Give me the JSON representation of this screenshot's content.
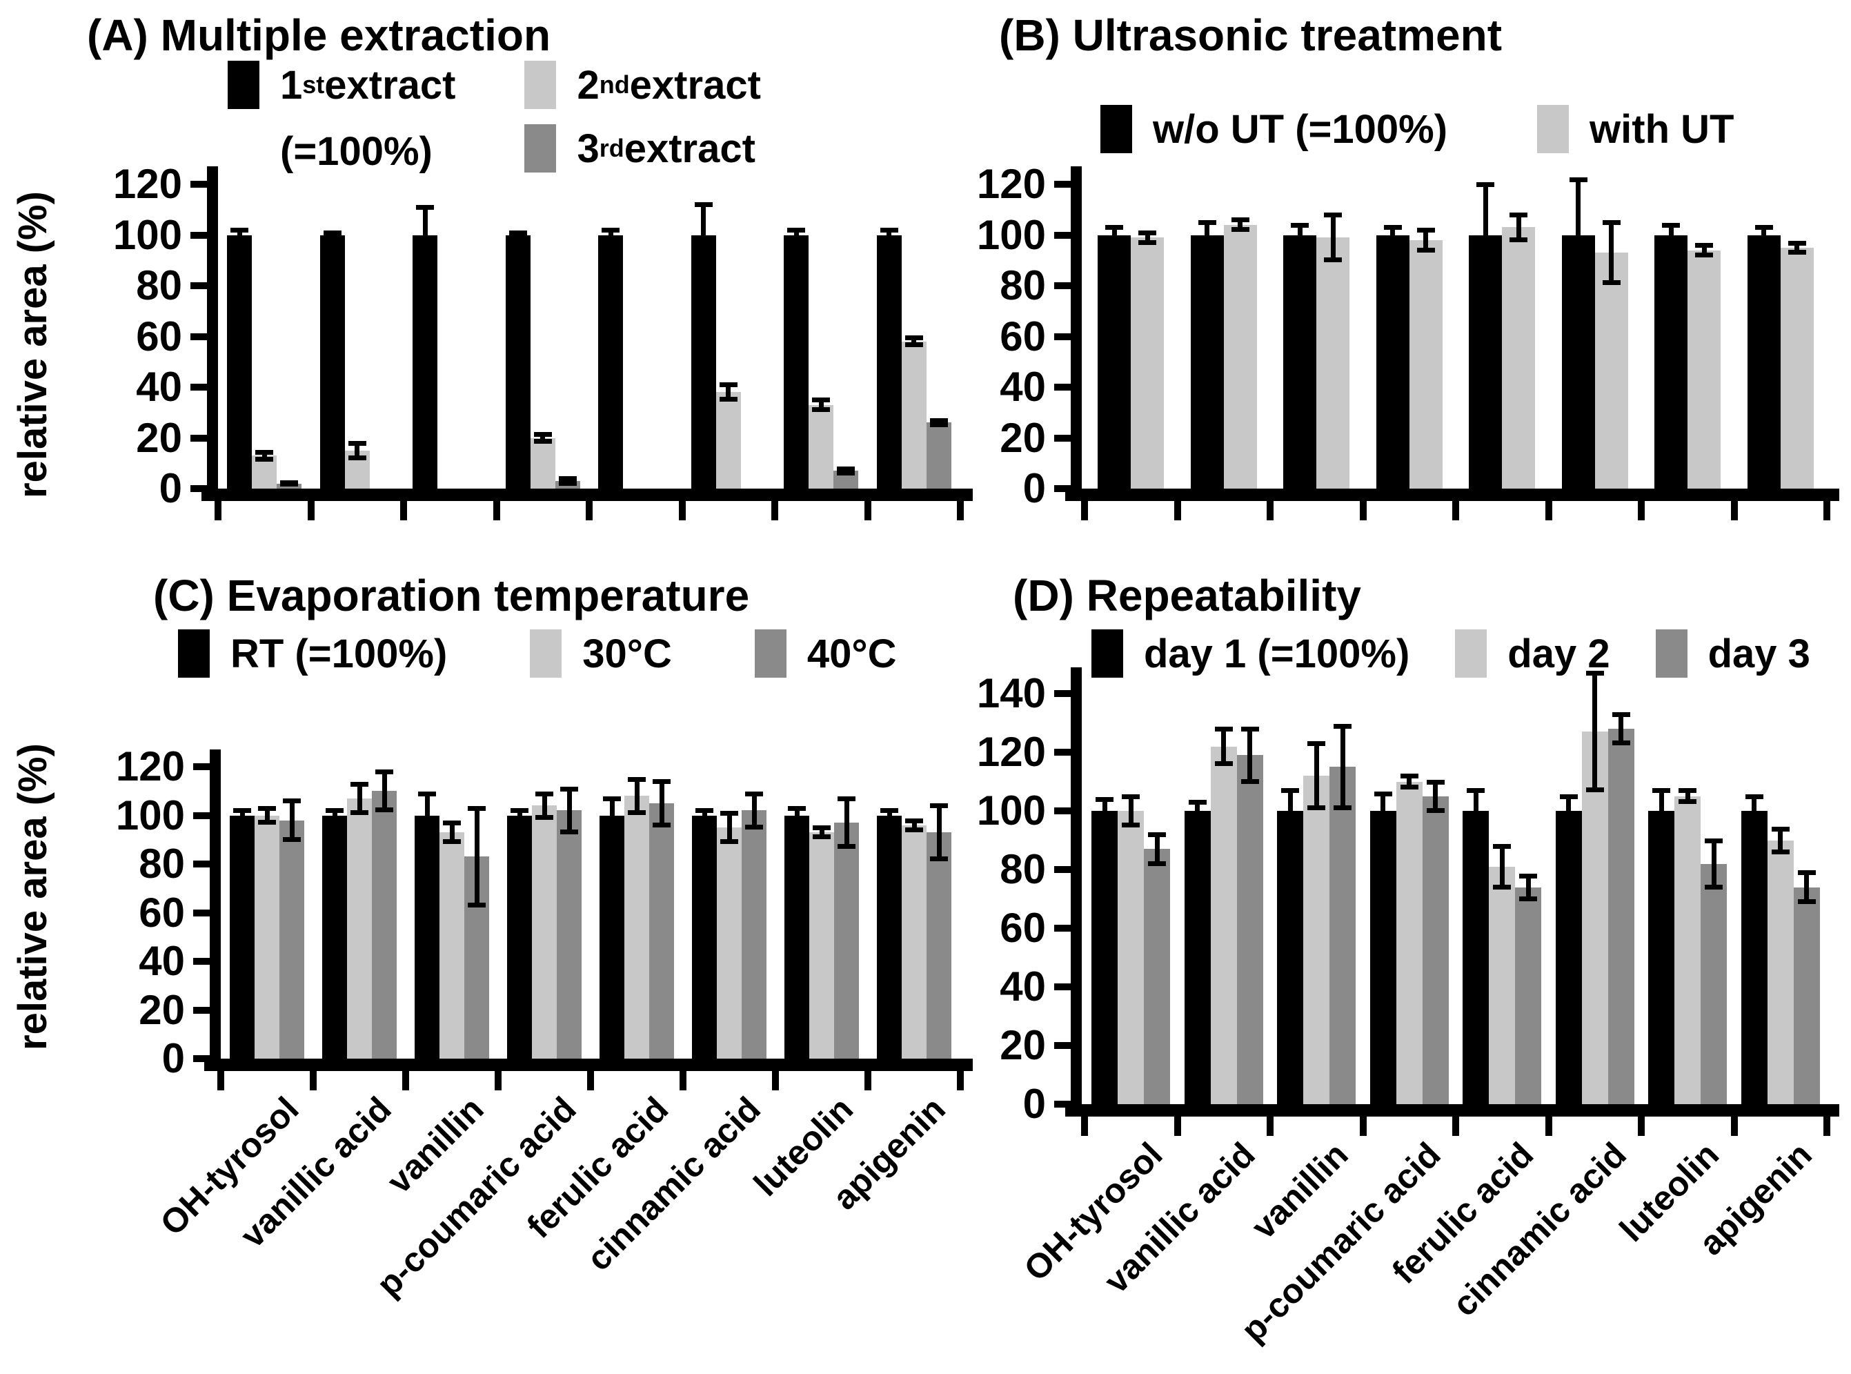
{
  "chart_data": [
    {
      "type": "bar",
      "panel": "A",
      "title": "(A) Multiple extraction",
      "ylabel": "relative area (%)",
      "ylim": [
        0,
        130
      ],
      "yticks": [
        0,
        20,
        40,
        60,
        80,
        100,
        120
      ],
      "grid": false,
      "legend_position": "top",
      "categories": [
        "OH-tyrosol",
        "vanillic acid",
        "vanillin",
        "p-coumaric acid",
        "ferulic acid",
        "cinnamic acid",
        "luteolin",
        "apigenin"
      ],
      "series": [
        {
          "name": "1st extract (=100%)",
          "legend_lines": [
            "1st extract",
            "(=100%)"
          ],
          "color": "#000000",
          "values": [
            100,
            100,
            100,
            100,
            100,
            100,
            100,
            100
          ],
          "errors": [
            2,
            1,
            11,
            1,
            2,
            12,
            2,
            2
          ]
        },
        {
          "name": "2nd extract",
          "legend_lines": [
            "2nd extract"
          ],
          "color": "#c8c8c8",
          "values": [
            13,
            15,
            0,
            20,
            0,
            38,
            33,
            58
          ],
          "errors": [
            1.5,
            3,
            0,
            1.5,
            0,
            3,
            2,
            1.5
          ]
        },
        {
          "name": "3rd extract",
          "legend_lines": [
            "3rd extract"
          ],
          "color": "#8a8a8a",
          "values": [
            2,
            0,
            0,
            3,
            0,
            0,
            7,
            26
          ],
          "errors": [
            0.5,
            0,
            0,
            1,
            0,
            0,
            1,
            1
          ]
        }
      ]
    },
    {
      "type": "bar",
      "panel": "B",
      "title": "(B) Ultrasonic treatment",
      "ylabel": "",
      "ylim": [
        0,
        130
      ],
      "yticks": [
        0,
        20,
        40,
        60,
        80,
        100,
        120
      ],
      "grid": false,
      "legend_position": "top",
      "categories": [
        "OH-tyrosol",
        "vanillic acid",
        "vanillin",
        "p-coumaric acid",
        "ferulic acid",
        "cinnamic acid",
        "luteolin",
        "apigenin"
      ],
      "series": [
        {
          "name": "w/o UT (=100%)",
          "legend_lines": [
            "w/o UT (=100%)"
          ],
          "color": "#000000",
          "values": [
            100,
            100,
            100,
            100,
            100,
            100,
            100,
            100
          ],
          "errors": [
            3,
            5,
            4,
            3,
            20,
            22,
            4,
            3
          ]
        },
        {
          "name": "with UT",
          "legend_lines": [
            "with UT"
          ],
          "color": "#c8c8c8",
          "values": [
            99,
            104,
            99,
            98,
            103,
            93,
            94,
            95
          ],
          "errors": [
            2,
            2,
            9,
            4,
            5,
            12,
            2,
            2
          ]
        }
      ]
    },
    {
      "type": "bar",
      "panel": "C",
      "title": "(C) Evaporation temperature",
      "ylabel": "relative area (%)",
      "ylim": [
        0,
        130
      ],
      "yticks": [
        0,
        20,
        40,
        60,
        80,
        100,
        120
      ],
      "grid": false,
      "legend_position": "top",
      "categories": [
        "OH-tyrosol",
        "vanillic acid",
        "vanillin",
        "p-coumaric acid",
        "ferulic acid",
        "cinnamic acid",
        "luteolin",
        "apigenin"
      ],
      "series": [
        {
          "name": "RT (=100%)",
          "legend_lines": [
            "RT (=100%)"
          ],
          "color": "#000000",
          "values": [
            100,
            100,
            100,
            100,
            100,
            100,
            100,
            100
          ],
          "errors": [
            2,
            2,
            9,
            2,
            7,
            2,
            3,
            2
          ]
        },
        {
          "name": "30°C",
          "legend_lines": [
            "30°C"
          ],
          "color": "#c8c8c8",
          "values": [
            100,
            107,
            93,
            104,
            108,
            95,
            93,
            96
          ],
          "errors": [
            3,
            6,
            4,
            5,
            7,
            6,
            2,
            2
          ]
        },
        {
          "name": "40°C",
          "legend_lines": [
            "40°C"
          ],
          "color": "#8a8a8a",
          "values": [
            98,
            110,
            83,
            102,
            105,
            102,
            97,
            93
          ],
          "errors": [
            8,
            8,
            20,
            9,
            9,
            7,
            10,
            11
          ]
        }
      ]
    },
    {
      "type": "bar",
      "panel": "D",
      "title": "(D) Repeatability",
      "ylabel": "",
      "ylim": [
        0,
        150
      ],
      "yticks": [
        0,
        20,
        40,
        60,
        80,
        100,
        120,
        140
      ],
      "grid": false,
      "legend_position": "top",
      "categories": [
        "OH-tyrosol",
        "vanillic acid",
        "vanillin",
        "p-coumaric acid",
        "ferulic acid",
        "cinnamic acid",
        "luteolin",
        "apigenin"
      ],
      "series": [
        {
          "name": "day 1 (=100%)",
          "legend_lines": [
            "day 1 (=100%)"
          ],
          "color": "#000000",
          "values": [
            100,
            100,
            100,
            100,
            100,
            100,
            100,
            100
          ],
          "errors": [
            4,
            3,
            7,
            6,
            7,
            5,
            7,
            5
          ]
        },
        {
          "name": "day 2",
          "legend_lines": [
            "day 2"
          ],
          "color": "#c8c8c8",
          "values": [
            100,
            122,
            112,
            110,
            81,
            127,
            105,
            90
          ],
          "errors": [
            5,
            6,
            11,
            2,
            7,
            20,
            2,
            4
          ]
        },
        {
          "name": "day 3",
          "legend_lines": [
            "day 3"
          ],
          "color": "#8a8a8a",
          "values": [
            87,
            119,
            115,
            105,
            74,
            128,
            82,
            74
          ],
          "errors": [
            5,
            9,
            14,
            5,
            4,
            5,
            8,
            5
          ]
        }
      ]
    }
  ]
}
